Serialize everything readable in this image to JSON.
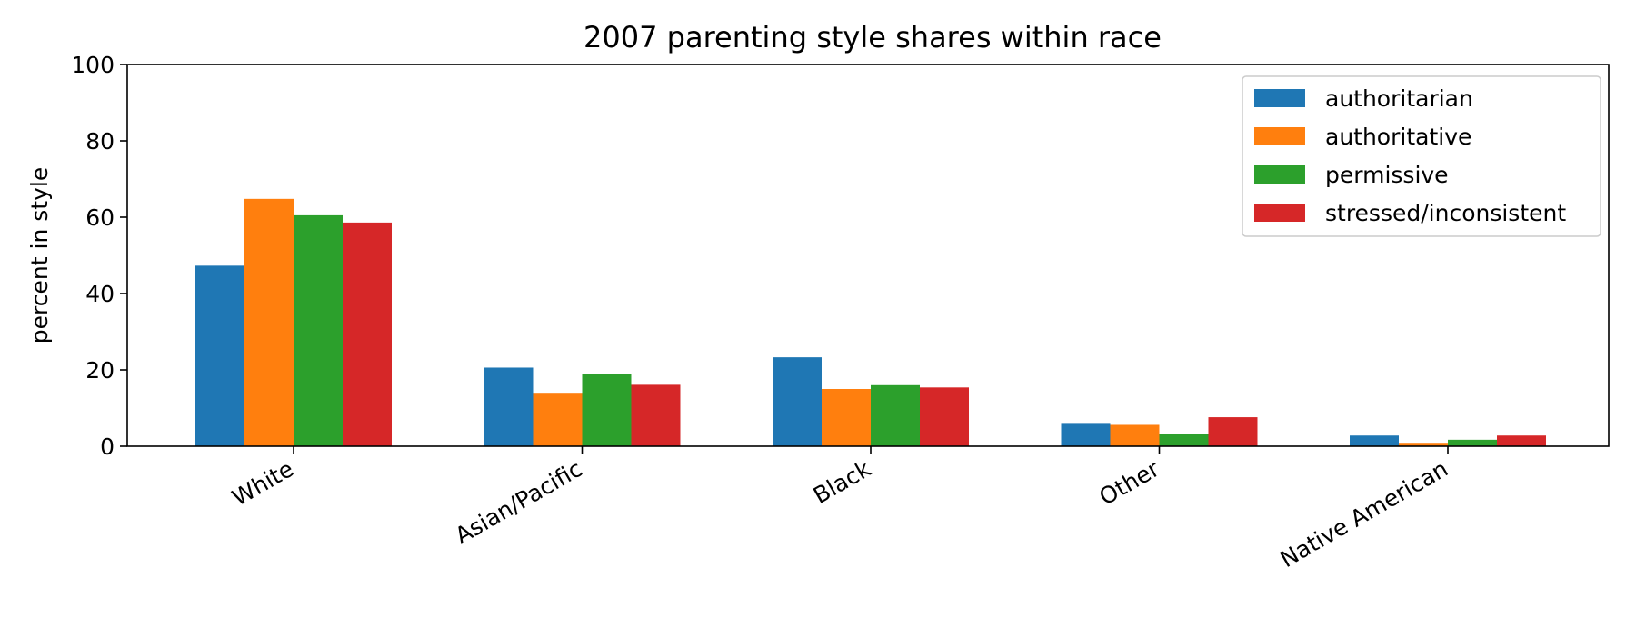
{
  "chart_data": {
    "type": "bar",
    "title": "2007 parenting style shares within race",
    "xlabel": "",
    "ylabel": "percent in style",
    "ylim": [
      0,
      100
    ],
    "yticks": [
      0,
      20,
      40,
      60,
      80,
      100
    ],
    "grid": false,
    "legend_position": "top-right",
    "categories": [
      "White",
      "Asian/Pacific",
      "Black",
      "Other",
      "Native American"
    ],
    "series": [
      {
        "name": "authoritarian",
        "color": "#1f77b4",
        "values": [
          47.3,
          20.6,
          23.3,
          6.1,
          2.8
        ]
      },
      {
        "name": "authoritative",
        "color": "#ff7f0e",
        "values": [
          64.8,
          14.0,
          15.0,
          5.6,
          0.9
        ]
      },
      {
        "name": "permissive",
        "color": "#2ca02c",
        "values": [
          60.5,
          19.0,
          16.0,
          3.3,
          1.7
        ]
      },
      {
        "name": "stressed/inconsistent",
        "color": "#d62728",
        "values": [
          58.6,
          16.1,
          15.4,
          7.6,
          2.8
        ]
      }
    ]
  }
}
